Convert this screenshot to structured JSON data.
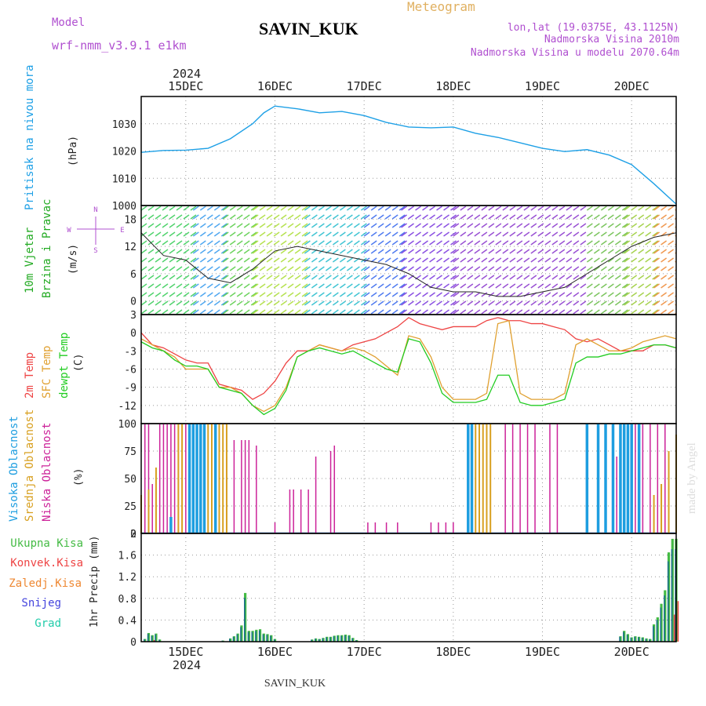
{
  "header": {
    "model_label": "Model",
    "model_name": "wrf-nmm_v3.9.1  e1km",
    "station": "SAVIN_KUK",
    "title": "Meteogram",
    "coords": "lon,lat (19.0375E, 43.1125N)",
    "elevation": "Nadmorska Visina 2010m",
    "model_elevation": "Nadmorska Visina u modelu 2070.64m"
  },
  "footer": {
    "station": "SAVIN_KUK",
    "watermark": "made by Angel"
  },
  "colors": {
    "pressure": "#1ea0e6",
    "t2m": "#ee4444",
    "sfc": "#e0a030",
    "dewpt": "#22cc22",
    "low_cloud": "#cc2299",
    "mid_cloud": "#d8a020",
    "high_cloud": "#1e9ee0",
    "total_precip": "#44bb44",
    "convective": "#ee4444",
    "freezing": "#ee8833",
    "snow": "#4444dd",
    "grad": "#22ccaa"
  },
  "chart_data": [
    {
      "type": "line",
      "panel": "pressure",
      "ylabel_title": "Pritisak na nivou mora",
      "unit": "(hPa)",
      "yticks": [
        1000,
        1010,
        1020,
        1030
      ],
      "ylim": [
        1000,
        1040
      ],
      "x_start_label": "2024",
      "day_labels": [
        "15DEC",
        "16DEC",
        "17DEC",
        "18DEC",
        "19DEC",
        "20DEC"
      ],
      "day_hours": [
        12,
        36,
        60,
        84,
        108,
        132
      ],
      "x_range_hours": [
        0,
        144
      ],
      "series": [
        {
          "x": [
            0,
            6,
            12,
            18,
            24,
            30,
            33,
            36,
            42,
            48,
            54,
            60,
            66,
            72,
            78,
            84,
            90,
            96,
            102,
            108,
            114,
            120,
            126,
            132,
            138,
            144
          ],
          "values": [
            1019.5,
            1020.2,
            1020.3,
            1021,
            1024.5,
            1030,
            1034,
            1036.5,
            1035.5,
            1034,
            1034.5,
            1033,
            1030.5,
            1028.8,
            1028.5,
            1028.8,
            1026.5,
            1025,
            1023,
            1021,
            1019.8,
            1020.5,
            1018.5,
            1015,
            1008,
            1000.5
          ]
        }
      ]
    },
    {
      "type": "line",
      "panel": "wind",
      "ylabel_title": "10m Vjetar",
      "ylabel_sub": "Brzina i Pravac",
      "unit": "(m/s)",
      "compass": [
        "N",
        "W",
        "E",
        "S"
      ],
      "yticks": [
        0,
        6,
        12,
        18
      ],
      "ylim": [
        -3,
        21
      ],
      "series": [
        {
          "name": "speed",
          "x": [
            0,
            6,
            12,
            18,
            24,
            30,
            36,
            42,
            48,
            54,
            60,
            66,
            72,
            78,
            84,
            90,
            96,
            102,
            108,
            114,
            120,
            126,
            132,
            138,
            144
          ],
          "values": [
            15,
            10,
            9,
            5,
            4,
            7,
            11,
            12,
            11,
            10,
            9,
            8,
            6,
            3,
            2,
            2,
            1,
            1,
            2,
            3,
            6,
            9,
            12,
            14,
            15
          ]
        }
      ]
    },
    {
      "type": "line",
      "panel": "temperature",
      "ylabel_lines": [
        "2m Temp",
        "SFC Temp",
        "dewpt Temp"
      ],
      "unit": "(C)",
      "yticks": [
        -12,
        -9,
        -6,
        -3,
        0,
        3
      ],
      "ylim": [
        -15,
        3
      ],
      "series": [
        {
          "name": "2m Temp",
          "x": [
            0,
            3,
            6,
            9,
            12,
            15,
            18,
            21,
            24,
            27,
            30,
            33,
            36,
            39,
            42,
            45,
            48,
            51,
            54,
            57,
            60,
            63,
            66,
            69,
            72,
            75,
            78,
            81,
            84,
            87,
            90,
            93,
            96,
            99,
            102,
            105,
            108,
            111,
            114,
            117,
            120,
            123,
            126,
            129,
            132,
            135,
            138,
            141,
            144
          ],
          "values": [
            0,
            -2,
            -2.5,
            -3.5,
            -4.5,
            -5,
            -5,
            -8.5,
            -9,
            -9.5,
            -11,
            -10,
            -8,
            -5,
            -3,
            -3,
            -2,
            -2.5,
            -3,
            -2,
            -1.5,
            -1,
            0,
            1,
            2.5,
            1.5,
            1,
            0.5,
            1,
            1,
            1,
            2,
            2.5,
            2,
            2,
            1.5,
            1.5,
            1,
            0.5,
            -1,
            -1.5,
            -1,
            -2,
            -3,
            -3,
            -3,
            -2,
            -2,
            -2.5
          ]
        },
        {
          "name": "SFC Temp",
          "x": [
            0,
            3,
            6,
            9,
            12,
            15,
            18,
            21,
            24,
            27,
            30,
            33,
            36,
            39,
            42,
            45,
            48,
            51,
            54,
            57,
            60,
            63,
            66,
            69,
            72,
            75,
            78,
            81,
            84,
            87,
            90,
            93,
            96,
            99,
            102,
            105,
            108,
            111,
            114,
            117,
            120,
            123,
            126,
            129,
            132,
            135,
            138,
            141,
            144
          ],
          "values": [
            -1,
            -2,
            -3,
            -4,
            -6,
            -6,
            -6,
            -9,
            -9,
            -10,
            -12,
            -13,
            -12,
            -9,
            -4,
            -3,
            -2,
            -2.5,
            -3,
            -2.5,
            -3,
            -4,
            -5.5,
            -7,
            -0.5,
            -1,
            -4,
            -9,
            -11,
            -11,
            -11,
            -10,
            1.5,
            2,
            -10,
            -11,
            -11,
            -11,
            -10,
            -2,
            -1,
            -2,
            -3,
            -3,
            -2.5,
            -1.5,
            -1,
            -0.5,
            -1
          ]
        },
        {
          "name": "dewpt Temp",
          "x": [
            0,
            3,
            6,
            9,
            12,
            15,
            18,
            21,
            24,
            27,
            30,
            33,
            36,
            39,
            42,
            45,
            48,
            51,
            54,
            57,
            60,
            63,
            66,
            69,
            72,
            75,
            78,
            81,
            84,
            87,
            90,
            93,
            96,
            99,
            102,
            105,
            108,
            111,
            114,
            117,
            120,
            123,
            126,
            129,
            132,
            135,
            138,
            141,
            144
          ],
          "values": [
            -1.5,
            -2.5,
            -3,
            -4.5,
            -5.5,
            -5.5,
            -6,
            -9,
            -9.5,
            -10,
            -12,
            -13.5,
            -12.5,
            -9.5,
            -4,
            -3,
            -2.5,
            -3,
            -3.5,
            -3,
            -4,
            -5,
            -6,
            -6.5,
            -1,
            -1.5,
            -5,
            -10,
            -11.5,
            -11.5,
            -11.5,
            -11,
            -7,
            -7,
            -11.5,
            -12,
            -12,
            -11.5,
            -11,
            -5,
            -4,
            -4,
            -3.5,
            -3.5,
            -3,
            -2.5,
            -2,
            -2,
            -2.5
          ]
        }
      ]
    },
    {
      "type": "bar",
      "panel": "clouds",
      "ylabel_lines": [
        "Visoka Oblacnost",
        "Srednja Oblacnost",
        "Niska Oblacnost"
      ],
      "unit": "(%)",
      "yticks": [
        0,
        25,
        50,
        75,
        100
      ],
      "ylim": [
        0,
        100
      ],
      "series": [
        {
          "name": "Niska",
          "x": [
            1,
            2,
            3,
            5,
            6,
            7,
            8,
            9,
            10,
            12,
            13,
            16,
            18,
            23,
            25,
            27,
            28,
            29,
            31,
            36,
            40,
            41,
            43,
            45,
            47,
            51,
            52,
            61,
            63,
            66,
            69,
            78,
            80,
            82,
            84,
            98,
            100,
            102,
            104,
            106,
            110,
            112,
            128,
            133,
            135,
            137,
            139,
            141
          ],
          "values": [
            100,
            100,
            45,
            100,
            100,
            100,
            100,
            100,
            100,
            100,
            100,
            100,
            100,
            70,
            85,
            85,
            85,
            85,
            80,
            10,
            40,
            40,
            40,
            40,
            70,
            75,
            80,
            10,
            10,
            10,
            10,
            10,
            10,
            10,
            10,
            100,
            100,
            100,
            100,
            100,
            100,
            100,
            70,
            100,
            100,
            100,
            100,
            100
          ]
        },
        {
          "name": "Srednja",
          "x": [
            0,
            2,
            4,
            10,
            11,
            13,
            14,
            18,
            19,
            20,
            21,
            22,
            23,
            89,
            90,
            91,
            92,
            93,
            94,
            138,
            140,
            142,
            144
          ],
          "values": [
            35,
            40,
            60,
            100,
            100,
            100,
            100,
            100,
            100,
            100,
            100,
            100,
            100,
            100,
            100,
            100,
            100,
            100,
            100,
            35,
            45,
            75,
            90
          ]
        },
        {
          "name": "Visoka",
          "x": [
            8,
            13,
            14,
            15,
            16,
            17,
            20,
            88,
            89,
            120,
            123,
            125,
            127,
            129,
            130,
            131,
            132,
            134
          ],
          "values": [
            15,
            100,
            100,
            100,
            100,
            100,
            100,
            100,
            100,
            100,
            100,
            100,
            100,
            100,
            100,
            100,
            100,
            100
          ]
        }
      ]
    },
    {
      "type": "bar",
      "panel": "precip",
      "ylabel_lines": [
        "Ukupna Kisa",
        "Konvek.Kisa",
        "Zaledj.Kisa",
        "Snijeg",
        "Grad"
      ],
      "unit": "1hr Precip (mm)",
      "yticks": [
        0,
        0.4,
        0.8,
        1.2,
        1.6,
        2
      ],
      "ylim": [
        0,
        2
      ],
      "bottom_year": "2024",
      "series": [
        {
          "name": "Ukupna Kisa",
          "x": [
            1,
            2,
            3,
            4,
            5,
            22,
            24,
            25,
            26,
            27,
            28,
            29,
            30,
            31,
            32,
            33,
            34,
            35,
            36,
            46,
            47,
            48,
            49,
            50,
            51,
            52,
            53,
            54,
            55,
            56,
            57,
            58,
            129,
            130,
            131,
            132,
            133,
            134,
            135,
            136,
            137,
            138,
            139,
            140,
            141,
            142,
            143,
            144
          ],
          "values": [
            0.05,
            0.16,
            0.12,
            0.15,
            0.04,
            0.02,
            0.06,
            0.1,
            0.15,
            0.3,
            0.9,
            0.2,
            0.2,
            0.22,
            0.23,
            0.15,
            0.14,
            0.12,
            0.05,
            0.04,
            0.06,
            0.05,
            0.07,
            0.09,
            0.09,
            0.11,
            0.12,
            0.12,
            0.13,
            0.12,
            0.07,
            0.03,
            0.1,
            0.2,
            0.14,
            0.08,
            0.1,
            0.09,
            0.08,
            0.06,
            0.05,
            0.32,
            0.45,
            0.7,
            0.95,
            1.65,
            1.9,
            1.9
          ]
        },
        {
          "name": "Konvek.Kisa",
          "x": [
            3,
            143,
            144
          ],
          "values": [
            0.03,
            0.5,
            0.75
          ]
        }
      ]
    }
  ]
}
